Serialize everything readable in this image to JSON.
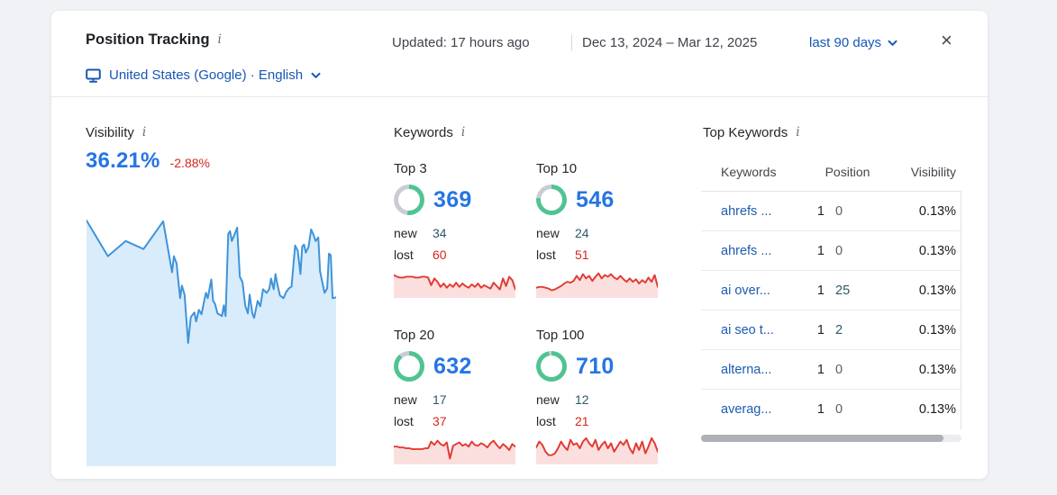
{
  "colors": {
    "accent_blue": "#2575e4",
    "link_blue": "#1757b4",
    "negative_red": "#d5271d",
    "positive_teal": "#2b5a63",
    "donut_green": "#4fc491",
    "donut_gray": "#c9ccd0",
    "zero_change_gray": "#5a5e66"
  },
  "header": {
    "title": "Position Tracking",
    "info_icon": "i",
    "updated": "Updated: 17 hours ago",
    "date_range": "Dec 13, 2024 – Mar 12, 2025",
    "period": "last 90 days",
    "scope": "United States (Google) · English",
    "close": "×"
  },
  "visibility": {
    "label": "Visibility",
    "info_icon": "i",
    "value": "36.21%",
    "change": "-2.88%"
  },
  "keywords": {
    "label": "Keywords",
    "info_icon": "i",
    "stats": [
      {
        "label": "Top 3",
        "value": "369",
        "ring_percent": 52,
        "new_label": "new",
        "new_value": "34",
        "lost_label": "lost",
        "lost_value": "60",
        "spark": "spark-top3"
      },
      {
        "label": "Top 10",
        "value": "546",
        "ring_percent": 77,
        "new_label": "new",
        "new_value": "24",
        "lost_label": "lost",
        "lost_value": "51",
        "spark": "spark-top10"
      },
      {
        "label": "Top 20",
        "value": "632",
        "ring_percent": 89,
        "new_label": "new",
        "new_value": "17",
        "lost_label": "lost",
        "lost_value": "37",
        "spark": "spark-top20"
      },
      {
        "label": "Top 100",
        "value": "710",
        "ring_percent": 97,
        "new_label": "new",
        "new_value": "12",
        "lost_label": "lost",
        "lost_value": "21",
        "spark": "spark-top100"
      }
    ]
  },
  "top_keywords": {
    "label": "Top Keywords",
    "info_icon": "i",
    "columns": [
      "Keywords",
      "Position",
      "Visibility"
    ],
    "rows": [
      {
        "keyword": "ahrefs ...",
        "position": "1",
        "change": "0",
        "visibility": "0.13%"
      },
      {
        "keyword": "ahrefs ...",
        "position": "1",
        "change": "0",
        "visibility": "0.13%"
      },
      {
        "keyword": "ai over...",
        "position": "1",
        "change": "25",
        "visibility": "0.13%"
      },
      {
        "keyword": "ai seo t...",
        "position": "1",
        "change": "2",
        "visibility": "0.13%"
      },
      {
        "keyword": "alterna...",
        "position": "1",
        "change": "0",
        "visibility": "0.13%"
      },
      {
        "keyword": "averag...",
        "position": "1",
        "change": "0",
        "visibility": "0.13%"
      }
    ]
  },
  "chart_data": [
    {
      "id": "visibility-trend",
      "type": "area",
      "title": "Visibility over last 90 days",
      "x_range": [
        "Dec 13, 2024",
        "Mar 12, 2025"
      ],
      "current_value": "36.21%",
      "axes_hidden": true,
      "view": [
        280,
        282
      ],
      "line": "#3e93da",
      "fill": "#d8ecfb",
      "stroke": 2,
      "points": [
        [
          0,
          7
        ],
        [
          24,
          47
        ],
        [
          44,
          30
        ],
        [
          64,
          39
        ],
        [
          86,
          8
        ],
        [
          96,
          65
        ],
        [
          98,
          47
        ],
        [
          101,
          55
        ],
        [
          105,
          94
        ],
        [
          107,
          80
        ],
        [
          110,
          90
        ],
        [
          114,
          144
        ],
        [
          117,
          115
        ],
        [
          121,
          110
        ],
        [
          123,
          120
        ],
        [
          126,
          107
        ],
        [
          129,
          112
        ],
        [
          132,
          97
        ],
        [
          134,
          88
        ],
        [
          136,
          94
        ],
        [
          140,
          73
        ],
        [
          142,
          97
        ],
        [
          144,
          100
        ],
        [
          147,
          111
        ],
        [
          152,
          114
        ],
        [
          154,
          102
        ],
        [
          156,
          114
        ],
        [
          159,
          22
        ],
        [
          161,
          19
        ],
        [
          163,
          30
        ],
        [
          166,
          23
        ],
        [
          169,
          15
        ],
        [
          172,
          70
        ],
        [
          175,
          76
        ],
        [
          178,
          102
        ],
        [
          181,
          111
        ],
        [
          183,
          90
        ],
        [
          186,
          111
        ],
        [
          188,
          116
        ],
        [
          192,
          97
        ],
        [
          195,
          103
        ],
        [
          198,
          84
        ],
        [
          202,
          88
        ],
        [
          205,
          84
        ],
        [
          207,
          72
        ],
        [
          210,
          84
        ],
        [
          212,
          67
        ],
        [
          214,
          78
        ],
        [
          217,
          91
        ],
        [
          221,
          94
        ],
        [
          224,
          87
        ],
        [
          227,
          83
        ],
        [
          230,
          81
        ],
        [
          234,
          35
        ],
        [
          237,
          41
        ],
        [
          240,
          67
        ],
        [
          242,
          36
        ],
        [
          244,
          34
        ],
        [
          246,
          43
        ],
        [
          249,
          37
        ],
        [
          252,
          17
        ],
        [
          255,
          24
        ],
        [
          257,
          30
        ],
        [
          260,
          26
        ],
        [
          262,
          64
        ],
        [
          267,
          88
        ],
        [
          270,
          83
        ],
        [
          272,
          44
        ],
        [
          274,
          46
        ],
        [
          276,
          94
        ],
        [
          280,
          93
        ]
      ]
    },
    {
      "id": "spark-top3",
      "type": "area",
      "title": "Top 3 keywords trend",
      "axes_hidden": true,
      "view": [
        135,
        34
      ],
      "line": "#e23b32",
      "fill": "#fbdfdf",
      "stroke": 2,
      "values": [
        7,
        9,
        10,
        10,
        9,
        9,
        9,
        10,
        10,
        9,
        9,
        10,
        19,
        11,
        15,
        21,
        17,
        22,
        18,
        21,
        16,
        21,
        17,
        20,
        22,
        18,
        21,
        17,
        22,
        19,
        21,
        23,
        16,
        20,
        24,
        11,
        20,
        9,
        13,
        24
      ]
    },
    {
      "id": "spark-top10",
      "type": "area",
      "title": "Top 10 keywords trend",
      "axes_hidden": true,
      "view": [
        135,
        34
      ],
      "line": "#e23b32",
      "fill": "#fbdfdf",
      "stroke": 2,
      "values": [
        22,
        21,
        21,
        22,
        23,
        25,
        24,
        22,
        20,
        17,
        15,
        16,
        14,
        8,
        13,
        6,
        11,
        8,
        14,
        9,
        5,
        11,
        7,
        9,
        6,
        10,
        12,
        8,
        12,
        15,
        11,
        15,
        12,
        17,
        13,
        16,
        10,
        15,
        7,
        21
      ]
    },
    {
      "id": "spark-top20",
      "type": "area",
      "title": "Top 20 keywords trend",
      "axes_hidden": true,
      "view": [
        135,
        34
      ],
      "line": "#e23b32",
      "fill": "#fbdfdf",
      "stroke": 2,
      "values": [
        13,
        13,
        14,
        14,
        15,
        15,
        16,
        16,
        16,
        16,
        15,
        15,
        7,
        11,
        6,
        10,
        12,
        8,
        27,
        12,
        10,
        8,
        12,
        10,
        13,
        7,
        11,
        12,
        9,
        11,
        14,
        9,
        6,
        11,
        15,
        10,
        13,
        17,
        10,
        13
      ]
    },
    {
      "id": "spark-top100",
      "type": "area",
      "title": "Top 100 keywords trend",
      "axes_hidden": true,
      "view": [
        135,
        34
      ],
      "line": "#e23b32",
      "fill": "#fbdfdf",
      "stroke": 2,
      "values": [
        14,
        7,
        11,
        19,
        23,
        23,
        21,
        15,
        7,
        13,
        17,
        5,
        11,
        9,
        15,
        7,
        3,
        9,
        13,
        5,
        17,
        11,
        7,
        15,
        9,
        19,
        13,
        7,
        11,
        5,
        15,
        21,
        9,
        17,
        7,
        21,
        13,
        3,
        9,
        19
      ]
    },
    {
      "id": "keyword-rings",
      "type": "pie",
      "series": [
        {
          "name": "Top 3",
          "value": 369,
          "percent": 52
        },
        {
          "name": "Top 10",
          "value": 546,
          "percent": 77
        },
        {
          "name": "Top 20",
          "value": 632,
          "percent": 89
        },
        {
          "name": "Top 100",
          "value": 710,
          "percent": 97
        }
      ]
    }
  ]
}
